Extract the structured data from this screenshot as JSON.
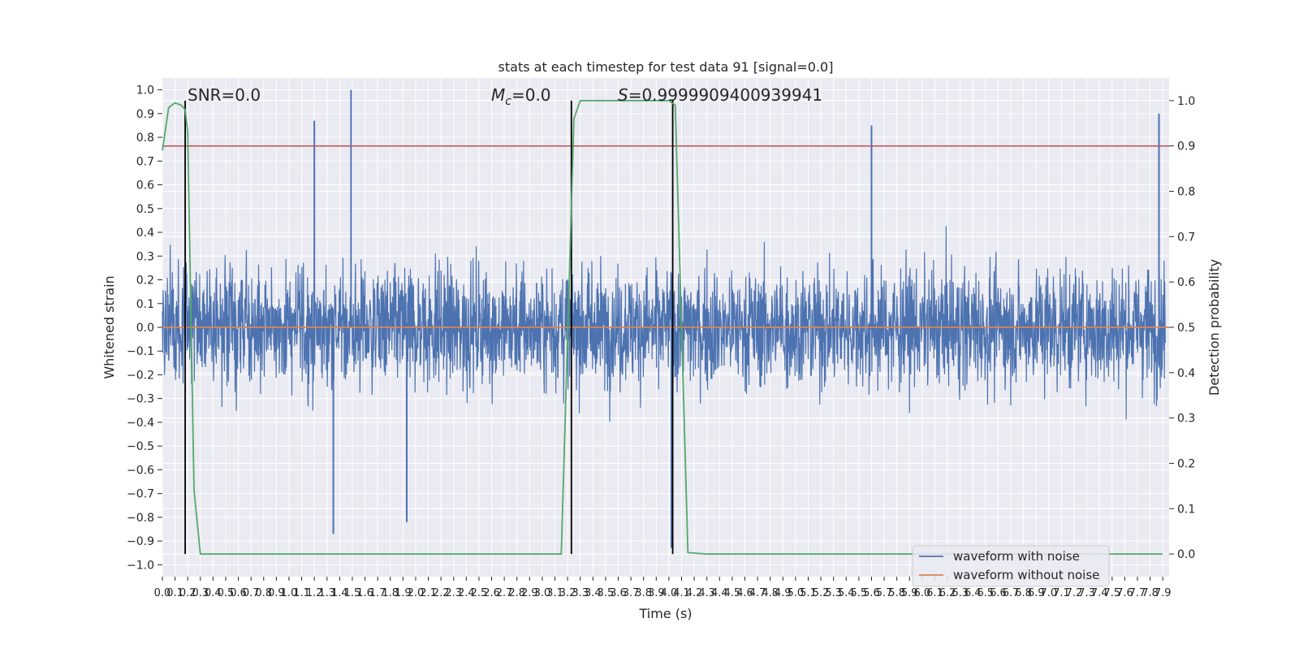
{
  "chart_data": {
    "type": "line",
    "title": "stats at each timestep for test data 91 [signal=0.0]",
    "xlabel": "Time (s)",
    "ylabel": "Whitened strain",
    "ylabel_right": "Detection probability",
    "xlim": [
      0.0,
      7.95
    ],
    "ylim": [
      -1.05,
      1.05
    ],
    "ylim_right": [
      -0.05,
      1.05
    ],
    "grid": true,
    "legend_placement": "lower-right",
    "x_tick_labels": [
      "0.0",
      "0.1",
      "0.2",
      "0.3",
      "0.4",
      "0.5",
      "0.6",
      "0.7",
      "0.8",
      "0.9",
      "1.0",
      "1.1",
      "1.2",
      "1.3",
      "1.4",
      "1.5",
      "1.6",
      "1.7",
      "1.8",
      "1.9",
      "2.0",
      "2.1",
      "2.2",
      "2.3",
      "2.4",
      "2.5",
      "2.6",
      "2.7",
      "2.8",
      "2.9",
      "3.0",
      "3.1",
      "3.2",
      "3.3",
      "3.4",
      "3.5",
      "3.6",
      "3.7",
      "3.8",
      "3.9",
      "4.0",
      "4.1",
      "4.2",
      "4.3",
      "4.4",
      "4.5",
      "4.6",
      "4.7",
      "4.8",
      "4.9",
      "5.0",
      "5.1",
      "5.2",
      "5.3",
      "5.4",
      "5.5",
      "5.6",
      "5.7",
      "5.8",
      "5.9",
      "6.0",
      "6.1",
      "6.2",
      "6.3",
      "6.4",
      "6.5",
      "6.6",
      "6.7",
      "6.8",
      "6.9",
      "7.0",
      "7.1",
      "7.2",
      "7.3",
      "7.4",
      "7.5",
      "7.6",
      "7.7",
      "7.8",
      "7.9"
    ],
    "y_tick_labels": [
      "1.0",
      "0.9",
      "0.8",
      "0.7",
      "0.6",
      "0.5",
      "0.4",
      "0.3",
      "0.2",
      "0.1",
      "0.0",
      "−0.1",
      "−0.2",
      "−0.3",
      "−0.4",
      "−0.5",
      "−0.6",
      "−0.7",
      "−0.8",
      "−0.9",
      "−1.0"
    ],
    "y_right_tick_labels": [
      "1.0",
      "0.9",
      "0.8",
      "0.7",
      "0.6",
      "0.5",
      "0.4",
      "0.3",
      "0.2",
      "0.1",
      "0.0"
    ],
    "annotations": {
      "snr": "SNR=0.0",
      "mc_symbol": "M",
      "mc_sub": "c",
      "mc_value": "=0.0",
      "s_symbol": "S",
      "s_value": "=0.9999909400939941"
    },
    "series": [
      {
        "name": "waveform with noise",
        "color": "#4c72b0",
        "axis": "left",
        "description_noise_envelope_max": 1.0,
        "description_noise_envelope_min": -0.93,
        "notable_peaks": [
          {
            "x": 1.2,
            "y": 0.87
          },
          {
            "x": 1.49,
            "y": 1.0
          },
          {
            "x": 1.35,
            "y": -0.87
          },
          {
            "x": 1.93,
            "y": -0.82
          },
          {
            "x": 4.02,
            "y": -0.93
          },
          {
            "x": 5.6,
            "y": 0.85
          },
          {
            "x": 7.87,
            "y": 0.9
          }
        ]
      },
      {
        "name": "waveform without noise",
        "color": "#dd8452",
        "axis": "left",
        "x": [
          0.0,
          7.95
        ],
        "y": [
          0.0,
          0.0
        ]
      },
      {
        "name": "",
        "color": "#55a868",
        "axis": "right",
        "x": [
          0.0,
          0.05,
          0.1,
          0.15,
          0.18,
          0.2,
          0.25,
          0.3,
          3.1,
          3.15,
          3.2,
          3.25,
          3.3,
          4.0,
          4.05,
          4.1,
          4.15,
          4.3,
          7.9
        ],
        "y": [
          0.89,
          0.985,
          0.995,
          0.99,
          0.98,
          0.93,
          0.14,
          0.0,
          0.0,
          0.0,
          0.48,
          0.96,
          1.0,
          1.0,
          0.99,
          0.5,
          0.003,
          0.0,
          0.0
        ]
      },
      {
        "name": "",
        "color": "#c44e52",
        "axis": "right",
        "x": [
          0.0,
          7.95
        ],
        "y": [
          0.9,
          0.9
        ]
      }
    ],
    "vertical_lines_x": [
      0.18,
      3.23,
      4.03
    ],
    "legend": [
      "waveform with noise",
      "waveform without noise"
    ]
  }
}
